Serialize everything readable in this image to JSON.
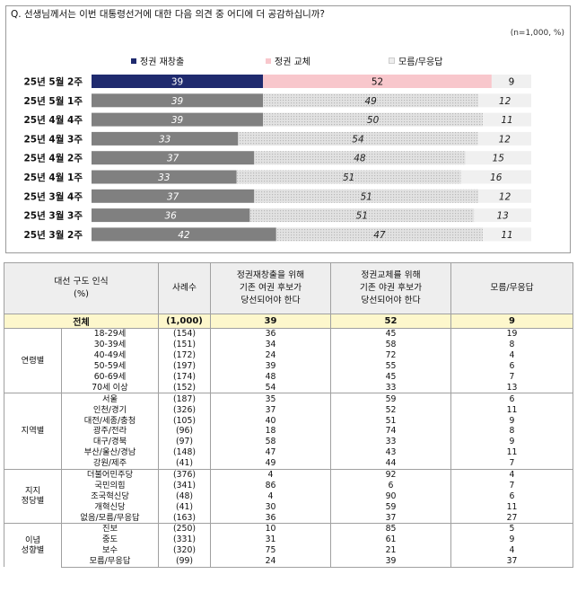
{
  "question": "Q. 선생님께서는 이번 대통령선거에 대한 다음 의견 중 어디에 더 공감하십니까?",
  "note": "(n=1,000, %)",
  "chart_data": {
    "type": "bar",
    "stacked": true,
    "orientation": "horizontal",
    "categories": [
      "25년 5월 2주",
      "25년 5월 1주",
      "25년 4월 4주",
      "25년 4월 3주",
      "25년 4월 2주",
      "25년 4월 1주",
      "25년 3월 4주",
      "25년 3월 3주",
      "25년 3월 2주"
    ],
    "series": [
      {
        "name": "정권 재창출",
        "values": [
          39,
          39,
          39,
          33,
          37,
          33,
          37,
          36,
          42
        ],
        "color": "#1f2a6e",
        "history_color": "#808080"
      },
      {
        "name": "정권 교체",
        "values": [
          52,
          49,
          50,
          54,
          48,
          51,
          51,
          51,
          47
        ],
        "color": "#f8c7cc",
        "history_color": "#d9d9d9"
      },
      {
        "name": "모름/무응답",
        "values": [
          9,
          12,
          11,
          12,
          15,
          16,
          12,
          13,
          11
        ],
        "color": "#f0f0f0"
      }
    ],
    "legend_position": "top"
  },
  "table": {
    "headers": {
      "group": "대선 구도 인식\n(%)",
      "n": "사례수",
      "a": "정권재창출을 위해\n기존 여권 후보가\n당선되어야 한다",
      "b": "정권교체를 위해\n기존 야권 후보가\n당선되어야 한다",
      "c": "모름/무응답"
    },
    "total": {
      "label": "전체",
      "n": "(1,000)",
      "a": "39",
      "b": "52",
      "c": "9"
    },
    "groups": [
      {
        "name": "연령별",
        "rows": [
          {
            "label": "18-29세",
            "n": "(154)",
            "a": "36",
            "b": "45",
            "c": "19"
          },
          {
            "label": "30-39세",
            "n": "(151)",
            "a": "34",
            "b": "58",
            "c": "8"
          },
          {
            "label": "40-49세",
            "n": "(172)",
            "a": "24",
            "b": "72",
            "c": "4"
          },
          {
            "label": "50-59세",
            "n": "(197)",
            "a": "39",
            "b": "55",
            "c": "6"
          },
          {
            "label": "60-69세",
            "n": "(174)",
            "a": "48",
            "b": "45",
            "c": "7"
          },
          {
            "label": "70세 이상",
            "n": "(152)",
            "a": "54",
            "b": "33",
            "c": "13"
          }
        ]
      },
      {
        "name": "지역별",
        "rows": [
          {
            "label": "서울",
            "n": "(187)",
            "a": "35",
            "b": "59",
            "c": "6"
          },
          {
            "label": "인천/경기",
            "n": "(326)",
            "a": "37",
            "b": "52",
            "c": "11"
          },
          {
            "label": "대전/세종/충청",
            "n": "(105)",
            "a": "40",
            "b": "51",
            "c": "9"
          },
          {
            "label": "광주/전라",
            "n": "(96)",
            "a": "18",
            "b": "74",
            "c": "8"
          },
          {
            "label": "대구/경북",
            "n": "(97)",
            "a": "58",
            "b": "33",
            "c": "9"
          },
          {
            "label": "부산/울산/경남",
            "n": "(148)",
            "a": "47",
            "b": "43",
            "c": "11"
          },
          {
            "label": "강원/제주",
            "n": "(41)",
            "a": "49",
            "b": "44",
            "c": "7"
          }
        ]
      },
      {
        "name": "지지\n정당별",
        "rows": [
          {
            "label": "더불어민주당",
            "n": "(376)",
            "a": "4",
            "b": "92",
            "c": "4"
          },
          {
            "label": "국민의힘",
            "n": "(341)",
            "a": "86",
            "b": "6",
            "c": "7"
          },
          {
            "label": "조국혁신당",
            "n": "(48)",
            "a": "4",
            "b": "90",
            "c": "6"
          },
          {
            "label": "개혁신당",
            "n": "(41)",
            "a": "30",
            "b": "59",
            "c": "11"
          },
          {
            "label": "없음/모름/무응답",
            "n": "(163)",
            "a": "36",
            "b": "37",
            "c": "27"
          }
        ]
      },
      {
        "name": "이념\n성향별",
        "rows": [
          {
            "label": "진보",
            "n": "(250)",
            "a": "10",
            "b": "85",
            "c": "5"
          },
          {
            "label": "중도",
            "n": "(331)",
            "a": "31",
            "b": "61",
            "c": "9"
          },
          {
            "label": "보수",
            "n": "(320)",
            "a": "75",
            "b": "21",
            "c": "4"
          },
          {
            "label": "모름/무응답",
            "n": "(99)",
            "a": "24",
            "b": "39",
            "c": "37"
          }
        ]
      }
    ]
  }
}
